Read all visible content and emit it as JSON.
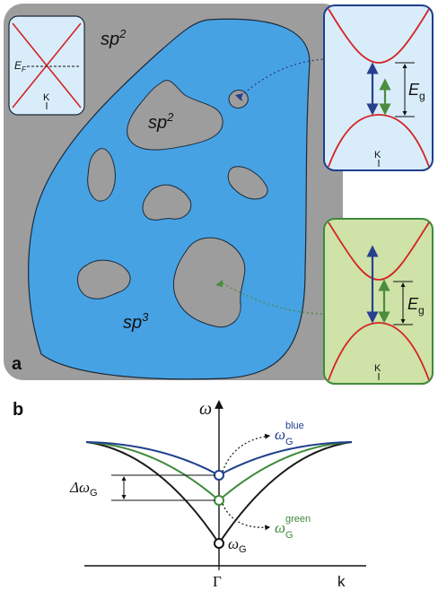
{
  "panel_a": {
    "label": "a",
    "corner_label": {
      "base": "sp",
      "sup": "2"
    },
    "island_label": {
      "base": "sp",
      "sup": "2"
    },
    "blue_region_label": {
      "base": "sp",
      "sup": "3"
    },
    "inset_graphene": {
      "fermi_base": "E",
      "fermi_sub": "F",
      "k_label": "K"
    },
    "inset_blue": {
      "gap_base": "E",
      "gap_sub": "g",
      "k_label": "K"
    },
    "inset_green": {
      "gap_base": "E",
      "gap_sub": "g",
      "k_label": "K"
    }
  },
  "panel_b": {
    "label": "b",
    "y_axis_label": "ω",
    "x_label_gamma": "Γ",
    "x_label_k": "k",
    "blue_label": {
      "base": "ω",
      "sup": "blue",
      "sub": "G"
    },
    "green_label": {
      "base": "ω",
      "sup": "green",
      "sub": "G"
    },
    "black_label": {
      "base": "ω",
      "sub": "G"
    },
    "delta_label": {
      "base": "Δω",
      "sub": "G"
    }
  },
  "colors": {
    "gray_panel": "#9d9d9d",
    "blue_fill": "#47a2e4",
    "light_blue_inset": "#d9ecfa",
    "light_green_inset": "#cfe2a8",
    "blue_line": "#1e3f8c",
    "green_line": "#3f8a3a",
    "red_band": "#d42424",
    "navy_arrow": "#283f8e",
    "green_arrow": "#4b8d3c"
  }
}
